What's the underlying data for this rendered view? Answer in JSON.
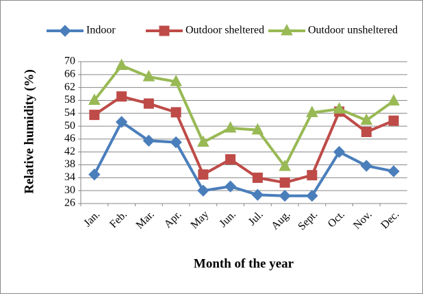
{
  "chart_data": {
    "type": "line",
    "x_label": "Month of the year",
    "y_label": "Relative humidity  (%)",
    "categories": [
      "Jan.",
      "Feb.",
      "Mar.",
      "Apr.",
      "May",
      "Jun.",
      "Jul.",
      "Aug.",
      "Sept.",
      "Oct.",
      "Nov.",
      "Dec."
    ],
    "series": [
      {
        "name": "Indoor",
        "color": "#4a7ebb",
        "marker": "diamond",
        "values": [
          35,
          51.3,
          45.5,
          45,
          30,
          31.3,
          28.7,
          28.4,
          28.4,
          42,
          37.7,
          36
        ]
      },
      {
        "name": "Outdoor sheltered",
        "color": "#be4b48",
        "marker": "square",
        "values": [
          53.5,
          59.2,
          57,
          54.3,
          35,
          39.7,
          34,
          32.5,
          34.8,
          54.5,
          48.2,
          51.7
        ]
      },
      {
        "name": "Outdoor unsheltered",
        "color": "#98b954",
        "marker": "triangle",
        "values": [
          58,
          68.8,
          65.3,
          63.8,
          45,
          49.4,
          48.8,
          37.5,
          54.2,
          55.3,
          51.8,
          57.8
        ]
      }
    ],
    "ylim": [
      26,
      70
    ],
    "yticks": [
      26,
      30,
      34,
      38,
      42,
      46,
      50,
      54,
      58,
      62,
      66,
      70
    ],
    "grid": true
  }
}
